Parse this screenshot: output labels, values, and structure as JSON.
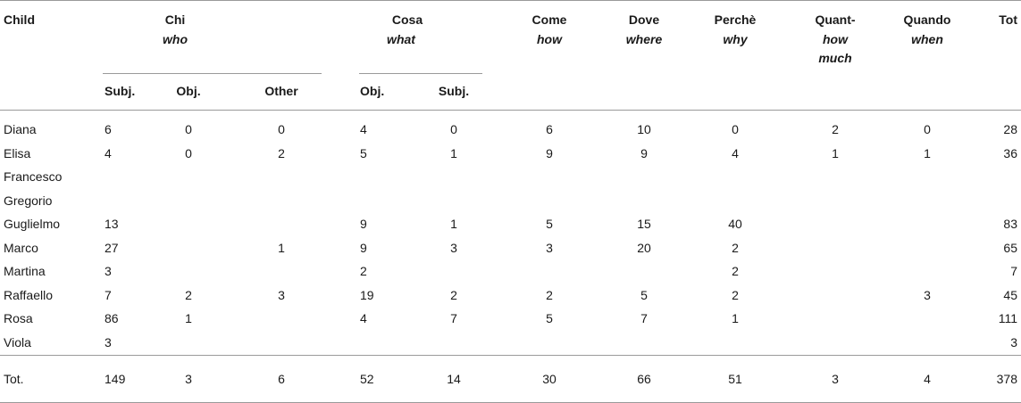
{
  "headers": {
    "child": "Child",
    "chi": {
      "it": "Chi",
      "en": "who"
    },
    "cosa": {
      "it": "Cosa",
      "en": "what"
    },
    "come": {
      "it": "Come",
      "en": "how"
    },
    "dove": {
      "it": "Dove",
      "en": "where"
    },
    "perche": {
      "it": "Perchè",
      "en": "why"
    },
    "quant": {
      "it": "Quant-",
      "en1": "how",
      "en2": "much"
    },
    "quando": {
      "it": "Quando",
      "en": "when"
    },
    "tot": "Tot",
    "sub": [
      "Subj.",
      "Obj.",
      "Other",
      "Obj.",
      "Subj."
    ]
  },
  "rows": [
    {
      "child": "Diana",
      "v": [
        "6",
        "0",
        "0",
        "4",
        "0",
        "6",
        "10",
        "0",
        "2",
        "0",
        "28"
      ]
    },
    {
      "child": "Elisa",
      "v": [
        "4",
        "0",
        "2",
        "5",
        "1",
        "9",
        "9",
        "4",
        "1",
        "1",
        "36"
      ]
    },
    {
      "child": "Francesco",
      "v": [
        "",
        "",
        "",
        "",
        "",
        "",
        "",
        "",
        "",
        "",
        ""
      ]
    },
    {
      "child": "Gregorio",
      "v": [
        "",
        "",
        "",
        "",
        "",
        "",
        "",
        "",
        "",
        "",
        ""
      ]
    },
    {
      "child": "Guglielmo",
      "v": [
        "13",
        "",
        "",
        "9",
        "1",
        "5",
        "15",
        "40",
        "",
        "",
        "83"
      ]
    },
    {
      "child": "Marco",
      "v": [
        "27",
        "",
        "1",
        "9",
        "3",
        "3",
        "20",
        "2",
        "",
        "",
        "65"
      ]
    },
    {
      "child": "Martina",
      "v": [
        "3",
        "",
        "",
        "2",
        "",
        "",
        "",
        "2",
        "",
        "",
        "7"
      ]
    },
    {
      "child": "Raffaello",
      "v": [
        "7",
        "2",
        "3",
        "19",
        "2",
        "2",
        "5",
        "2",
        "",
        "3",
        "45"
      ]
    },
    {
      "child": "Rosa",
      "v": [
        "86",
        "1",
        "",
        "4",
        "7",
        "5",
        "7",
        "1",
        "",
        "",
        "111"
      ]
    },
    {
      "child": "Viola",
      "v": [
        "3",
        "",
        "",
        "",
        "",
        "",
        "",
        "",
        "",
        "",
        "3"
      ]
    }
  ],
  "total": {
    "child": "Tot.",
    "v": [
      "149",
      "3",
      "6",
      "52",
      "14",
      "30",
      "66",
      "51",
      "3",
      "4",
      "378"
    ]
  }
}
